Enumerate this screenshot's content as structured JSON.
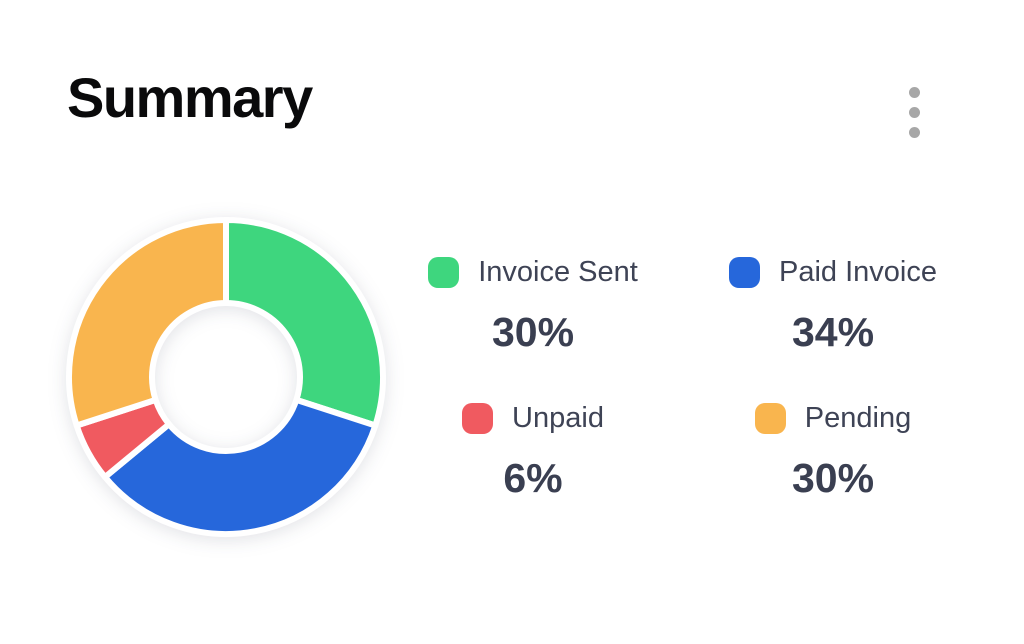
{
  "header": {
    "title": "Summary",
    "menu_icon": "kebab-menu-icon"
  },
  "chart_data": {
    "type": "pie",
    "variant": "donut",
    "title": "Summary",
    "start_angle_deg": 0,
    "direction": "clockwise",
    "inner_radius_ratio": 0.48,
    "legend_position": "right",
    "slices": [
      {
        "label": "Invoice Sent",
        "value": 30,
        "pct_label": "30%",
        "color": "#3ed67e"
      },
      {
        "label": "Paid Invoice",
        "value": 34,
        "pct_label": "34%",
        "color": "#2667db"
      },
      {
        "label": "Unpaid",
        "value": 6,
        "pct_label": "6%",
        "color": "#f05a60"
      },
      {
        "label": "Pending",
        "value": 30,
        "pct_label": "30%",
        "color": "#f9b54e"
      }
    ]
  },
  "colors": {
    "background": "#ffffff",
    "title_text": "#0a0a0b",
    "legend_text": "#3e4355",
    "percent_text": "#3a3f51",
    "kebab_dots": "#a7a7a7",
    "slice_separator": "#ffffff"
  }
}
